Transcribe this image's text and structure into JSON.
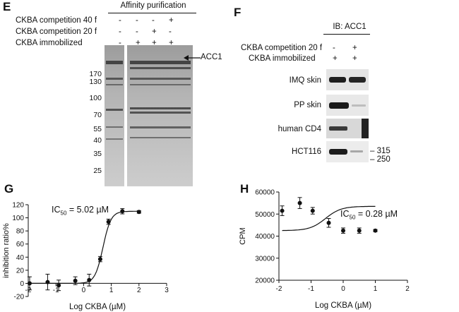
{
  "panels": {
    "E": {
      "letter": "E",
      "header": "Affinity purification",
      "conditions": [
        {
          "label": "CKBA competition 40 f",
          "marks": [
            "-",
            "-",
            "-",
            "+"
          ]
        },
        {
          "label": "CKBA competition 20 f",
          "marks": [
            "-",
            "-",
            "+",
            "-"
          ]
        },
        {
          "label": "CKBA immobilized",
          "marks": [
            "-",
            "+",
            "+",
            "+"
          ]
        }
      ],
      "markers": [
        "170",
        "130",
        "100",
        "70",
        "55",
        "40",
        "35",
        "25"
      ],
      "arrow_label": "ACC1"
    },
    "F": {
      "letter": "F",
      "header": "IB: ACC1",
      "conditions": [
        {
          "label": "CKBA competition 20 f",
          "marks": [
            "-",
            "+"
          ]
        },
        {
          "label": "CKBA immobilized",
          "marks": [
            "+",
            "+"
          ]
        }
      ],
      "rows": [
        "IMQ skin",
        "PP skin",
        "human CD4",
        "HCT116"
      ],
      "size_markers": [
        "315",
        "250"
      ]
    },
    "G": {
      "letter": "G",
      "annotation_pre": "IC",
      "annotation_sub": "50",
      "annotation_post": " = 5.02 µM"
    },
    "H": {
      "letter": "H",
      "annotation": "IC50 = 0.28 µM"
    }
  },
  "chart_data": [
    {
      "type": "scatter",
      "panel": "G",
      "xlabel": "Log CKBA (µM)",
      "ylabel": "inhibition ratio%",
      "xlim": [
        -2,
        3
      ],
      "ylim": [
        -20,
        120
      ],
      "xticks": [
        -2,
        -1,
        0,
        1,
        2,
        3
      ],
      "yticks": [
        -20,
        0,
        20,
        40,
        60,
        80,
        100,
        120
      ],
      "x": [
        -1.95,
        -1.3,
        -0.9,
        -0.3,
        0.2,
        0.6,
        0.9,
        1.4,
        2.0
      ],
      "y": [
        0,
        2,
        -3,
        4,
        5,
        37,
        94,
        110,
        109
      ],
      "err": [
        10,
        12,
        8,
        6,
        9,
        4,
        4,
        4,
        2
      ],
      "fit": {
        "bottom": 0,
        "top": 110,
        "logIC50": 0.7,
        "hill": 3.0
      }
    },
    {
      "type": "scatter",
      "panel": "H",
      "xlabel": "Log CKBA (µM)",
      "ylabel": "CPM",
      "xlim": [
        -2,
        2
      ],
      "ylim": [
        20000,
        60000
      ],
      "xticks": [
        -2,
        -1,
        0,
        1,
        2
      ],
      "yticks": [
        20000,
        30000,
        40000,
        50000,
        60000
      ],
      "x": [
        -1.9,
        -1.35,
        -0.95,
        -0.45,
        0.0,
        0.5,
        1.0
      ],
      "y": [
        51500,
        55000,
        51500,
        46000,
        42500,
        42500,
        42500
      ],
      "err": [
        2200,
        2500,
        1500,
        2000,
        1200,
        1200,
        500
      ],
      "fit": {
        "bottom": 42500,
        "top": 53500,
        "logIC50": -0.55,
        "hill": 1.8
      }
    }
  ]
}
